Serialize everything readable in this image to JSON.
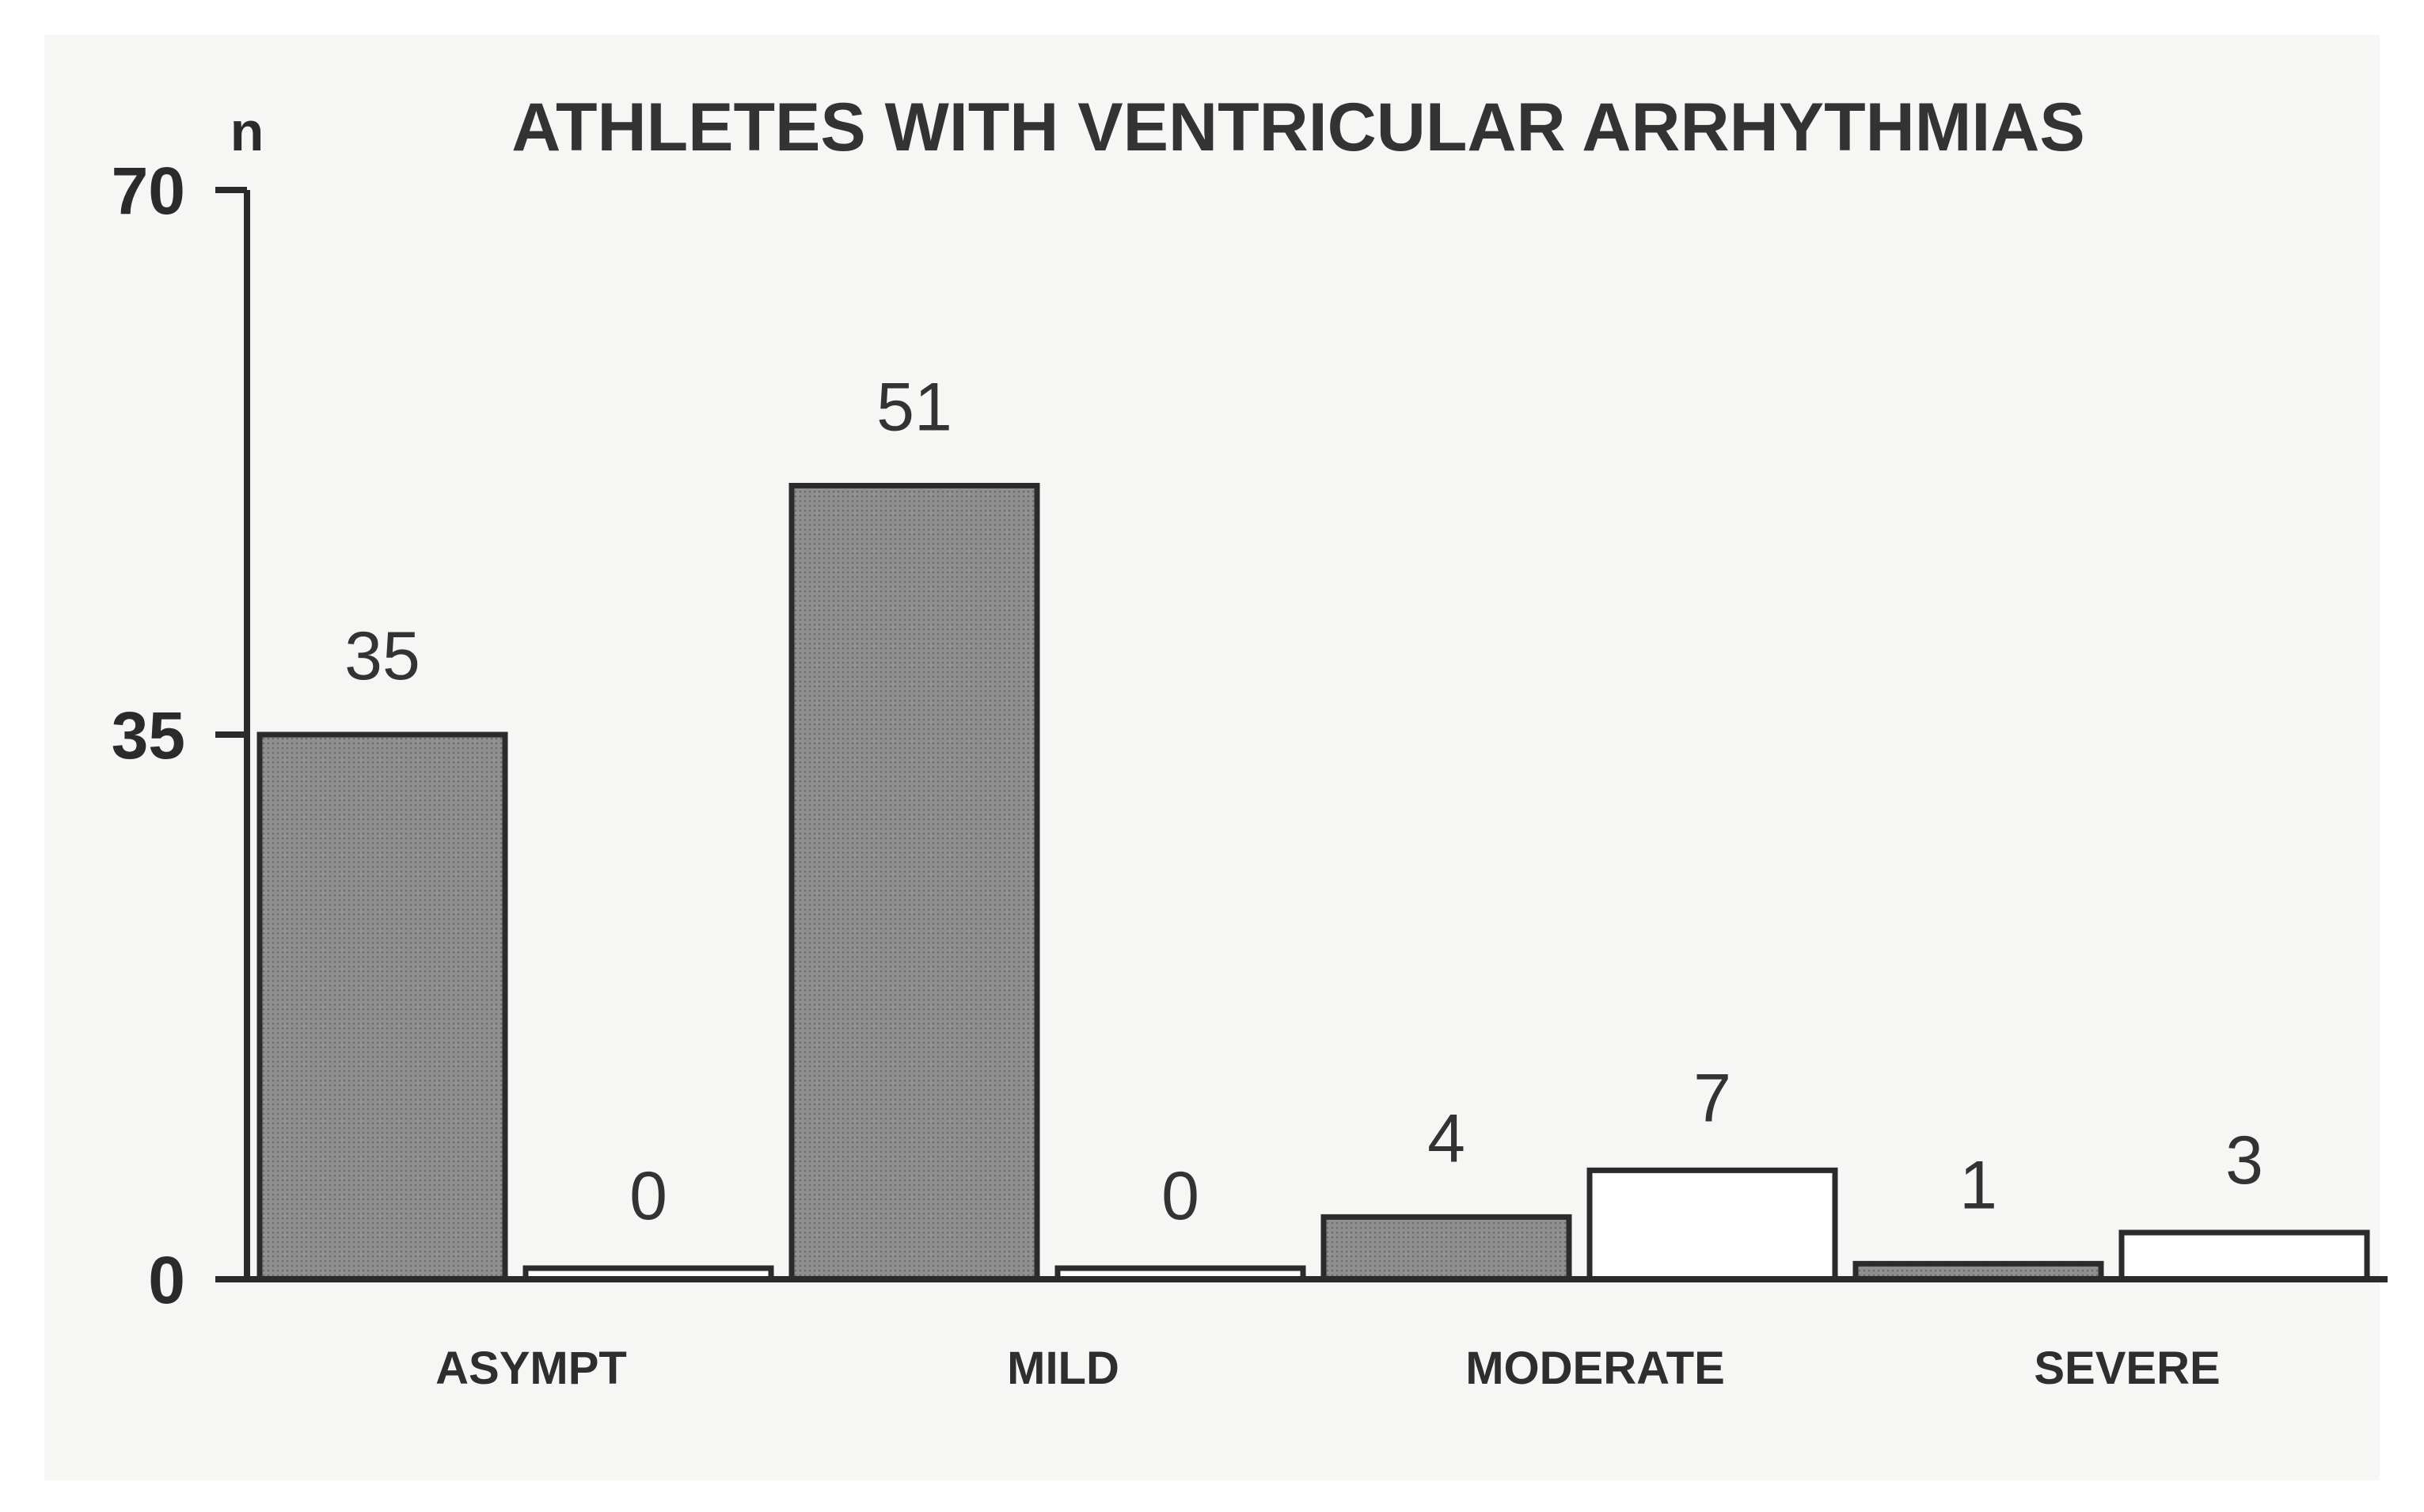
{
  "chart_data": {
    "type": "bar",
    "title": "ATHLETES WITH VENTRICULAR ARRHYTHMIAS",
    "ylabel": "n",
    "xlabel": "",
    "ylim": [
      0,
      70
    ],
    "yticks": [
      0,
      35,
      70
    ],
    "grid": false,
    "legend": "none",
    "categories": [
      "ASYMPT",
      "MILD",
      "MODERATE",
      "SEVERE"
    ],
    "series": [
      {
        "fill": "#8f8f8f",
        "values": [
          35,
          51,
          4,
          1
        ]
      },
      {
        "fill": "#ffffff",
        "values": [
          0,
          0,
          7,
          3
        ]
      }
    ]
  },
  "colors": {
    "axis": "#2b2b2b",
    "bar_outline": "#2b2b2b"
  }
}
